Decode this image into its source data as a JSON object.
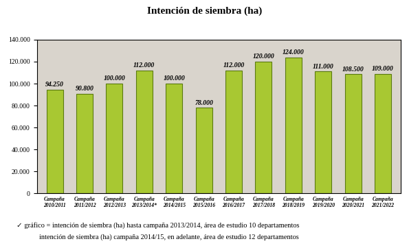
{
  "chart_data": {
    "type": "bar",
    "title": "Intención de siembra (ha)",
    "categories": [
      "Campaña 2010/2011",
      "Campaña 2011/2012",
      "Campaña 2012/2013",
      "Campaña 2013/2014*",
      "Campaña 2014/2015",
      "Campaña 2015/2016",
      "Campaña 2016/2017",
      "Campaña 2017/2018",
      "Campaña 2018/2019",
      "Campaña 2019/2020",
      "Campaña 2020/2021",
      "Campaña 2021/2022"
    ],
    "values": [
      94250,
      90800,
      100000,
      112000,
      100000,
      78000,
      112000,
      120000,
      124000,
      111000,
      108500,
      109000
    ],
    "value_labels": [
      "94.250",
      "90.800",
      "100.000",
      "112.000",
      "100.000",
      "78.000",
      "112.000",
      "120.000",
      "124.000",
      "111.000",
      "108.500",
      "109.000"
    ],
    "data_labels": true,
    "color": "#a8c832",
    "ylim": [
      0,
      140000
    ],
    "yticks": [
      0,
      {
        "value": 20000,
        "label": "20.000"
      },
      {
        "value": 40000,
        "label": "40.000"
      },
      {
        "value": 60000,
        "label": "60.000"
      },
      {
        "value": 80000,
        "label": "80.000"
      },
      {
        "value": 100000,
        "label": "100.000"
      },
      {
        "value": 120000,
        "label": "120.000"
      },
      {
        "value": 140000,
        "label": "140.000"
      }
    ],
    "grid": false,
    "notes": [
      "✓ gráfico = intención de siembra (ha) hasta campaña 2013/2014, área de estudio 10 departamentos",
      "intención de siembra (ha) campaña 2014/15, en adelante, área de estudio 12 departamentos"
    ]
  }
}
